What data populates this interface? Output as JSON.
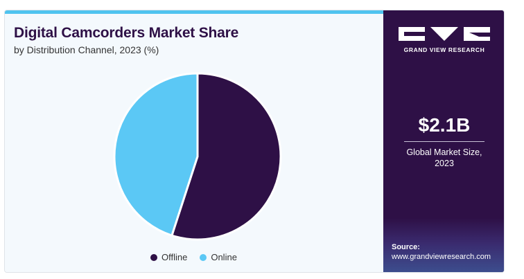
{
  "chart_data": {
    "type": "pie",
    "title": "Digital Camcorders Market Share",
    "subtitle": "by Distribution Channel, 2023 (%)",
    "categories": [
      "Offline",
      "Online"
    ],
    "values": [
      55,
      45
    ],
    "colors": [
      "#2e1046",
      "#5bc8f5"
    ],
    "legend_position": "bottom"
  },
  "sidebar": {
    "brand": "GRAND VIEW RESEARCH",
    "market_value": "$2.1B",
    "market_label": "Global Market Size, 2023",
    "source_label": "Source:",
    "source_url": "www.grandviewresearch.com"
  },
  "colors": {
    "accent": "#4fc3ef",
    "brand_dark": "#2e1046",
    "background": "#f4f9fd"
  }
}
